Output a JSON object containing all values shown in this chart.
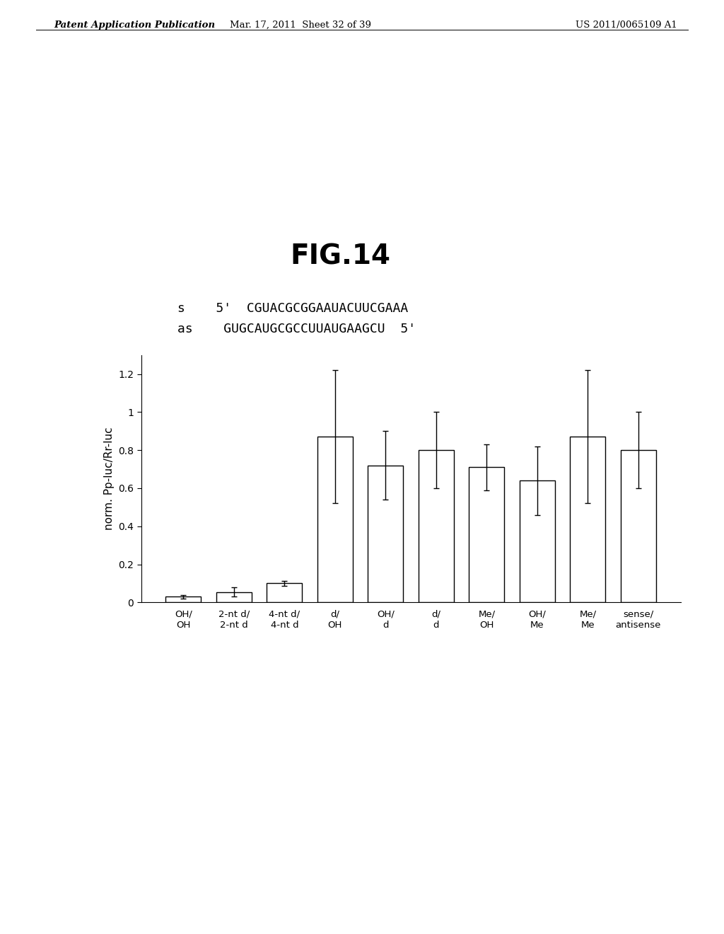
{
  "title": "FIG.14",
  "ylabel": "norm. Pp-luc/Rr-luc",
  "bar_values": [
    0.03,
    0.055,
    0.1,
    0.87,
    0.72,
    0.8,
    0.71,
    0.64,
    0.87,
    0.8
  ],
  "bar_errors": [
    0.01,
    0.025,
    0.013,
    0.35,
    0.18,
    0.2,
    0.12,
    0.18,
    0.35,
    0.2
  ],
  "bar_labels": [
    "OH/\nOH",
    "2-nt d/\n2-nt d",
    "4-nt d/\n4-nt d",
    "d/\nOH",
    "OH/\nd",
    "d/\nd",
    "Me/\nOH",
    "OH/\nMe",
    "Me/\nMe",
    "sense/\nantisense"
  ],
  "ylim": [
    0,
    1.3
  ],
  "yticks": [
    0,
    0.2,
    0.4,
    0.6,
    0.8,
    1.0,
    1.2
  ],
  "bar_color": "#ffffff",
  "bar_edgecolor": "#000000",
  "background_color": "#ffffff",
  "header_left": "Patent Application Publication",
  "header_center": "Mar. 17, 2011  Sheet 32 of 39",
  "header_right": "US 2011/0065109 A1",
  "seq_s": "s    5'  CGUACGCGGAAUACUUCGAAA",
  "seq_as": "as    GUGCAUGCGCCUUAUGAAGCU  5'"
}
